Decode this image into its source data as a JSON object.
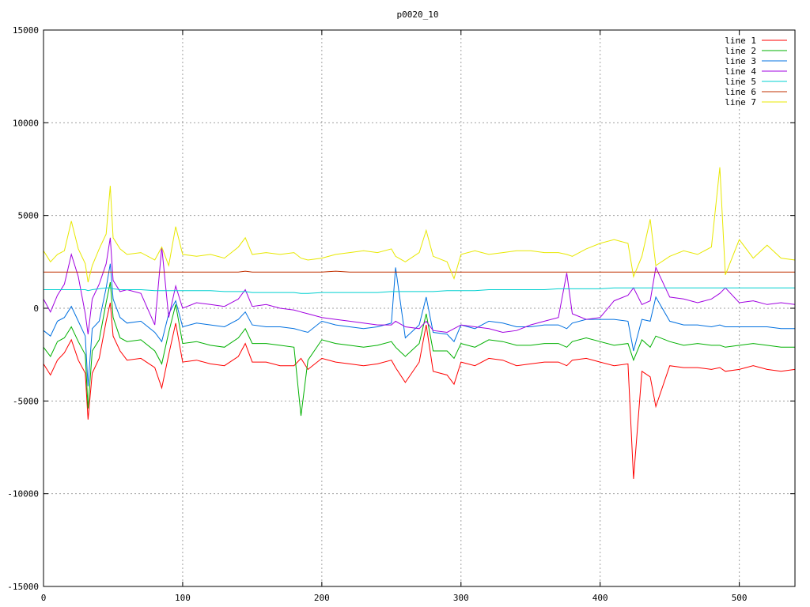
{
  "chart_data": {
    "type": "line",
    "title": "p0020_10",
    "xlabel": "",
    "ylabel": "",
    "xlim": [
      0,
      540
    ],
    "ylim": [
      -15000,
      15000
    ],
    "xticks": [
      0,
      100,
      200,
      300,
      400,
      500
    ],
    "yticks": [
      -15000,
      -10000,
      -5000,
      0,
      5000,
      10000,
      15000
    ],
    "grid": true,
    "legend_position": "top-right",
    "x": [
      0,
      5,
      10,
      15,
      20,
      25,
      30,
      32,
      35,
      40,
      45,
      48,
      50,
      55,
      60,
      70,
      80,
      85,
      90,
      95,
      100,
      110,
      120,
      130,
      140,
      145,
      150,
      160,
      170,
      180,
      185,
      190,
      200,
      210,
      220,
      230,
      240,
      250,
      253,
      260,
      270,
      275,
      280,
      290,
      295,
      300,
      310,
      320,
      330,
      340,
      350,
      360,
      370,
      376,
      380,
      390,
      400,
      410,
      420,
      424,
      430,
      436,
      440,
      450,
      460,
      470,
      480,
      486,
      490,
      500,
      510,
      520,
      530,
      540
    ],
    "series": [
      {
        "name": "line 1",
        "color": "#ff0000",
        "values": [
          -3000,
          -3600,
          -2800,
          -2400,
          -1700,
          -2800,
          -3500,
          -6000,
          -3500,
          -2700,
          -700,
          300,
          -1500,
          -2300,
          -2800,
          -2700,
          -3200,
          -4300,
          -2500,
          -800,
          -2900,
          -2800,
          -3000,
          -3100,
          -2600,
          -1900,
          -2900,
          -2900,
          -3100,
          -3100,
          -2700,
          -3300,
          -2700,
          -2900,
          -3000,
          -3100,
          -3000,
          -2800,
          -3200,
          -4000,
          -2900,
          -900,
          -3400,
          -3600,
          -4100,
          -2900,
          -3100,
          -2700,
          -2800,
          -3100,
          -3000,
          -2900,
          -2900,
          -3100,
          -2800,
          -2700,
          -2900,
          -3100,
          -3000,
          -9200,
          -3400,
          -3700,
          -5300,
          -3100,
          -3200,
          -3200,
          -3300,
          -3200,
          -3400,
          -3300,
          -3100,
          -3300,
          -3400,
          -3300
        ]
      },
      {
        "name": "line 2",
        "color": "#00b000",
        "values": [
          -2100,
          -2600,
          -1800,
          -1600,
          -1000,
          -1800,
          -2500,
          -5400,
          -2300,
          -1700,
          300,
          1400,
          -500,
          -1600,
          -1800,
          -1700,
          -2300,
          -3000,
          -1300,
          200,
          -1900,
          -1800,
          -2000,
          -2100,
          -1600,
          -1100,
          -1900,
          -1900,
          -2000,
          -2100,
          -5800,
          -2800,
          -1700,
          -1900,
          -2000,
          -2100,
          -2000,
          -1800,
          -2100,
          -2600,
          -1900,
          -300,
          -2300,
          -2300,
          -2700,
          -1900,
          -2100,
          -1700,
          -1800,
          -2000,
          -2000,
          -1900,
          -1900,
          -2100,
          -1800,
          -1600,
          -1800,
          -2000,
          -1900,
          -2800,
          -1700,
          -2100,
          -1500,
          -1800,
          -2000,
          -1900,
          -2000,
          -2000,
          -2100,
          -2000,
          -1900,
          -2000,
          -2100,
          -2100
        ]
      },
      {
        "name": "line 3",
        "color": "#0070e0",
        "values": [
          -1200,
          -1500,
          -700,
          -500,
          100,
          -700,
          -1500,
          -4200,
          -1100,
          -700,
          1100,
          2400,
          500,
          -500,
          -800,
          -700,
          -1300,
          -1800,
          -300,
          400,
          -1000,
          -800,
          -900,
          -1000,
          -600,
          -200,
          -900,
          -1000,
          -1000,
          -1100,
          -1200,
          -1300,
          -700,
          -900,
          -1000,
          -1100,
          -1000,
          -800,
          2200,
          -1600,
          -900,
          600,
          -1300,
          -1400,
          -1800,
          -900,
          -1100,
          -700,
          -800,
          -1000,
          -1000,
          -900,
          -900,
          -1100,
          -800,
          -600,
          -600,
          -600,
          -700,
          -2300,
          -600,
          -700,
          600,
          -700,
          -900,
          -900,
          -1000,
          -900,
          -1000,
          -1000,
          -1000,
          -1000,
          -1100,
          -1100
        ]
      },
      {
        "name": "line 4",
        "color": "#a000e0",
        "values": [
          500,
          -200,
          700,
          1300,
          2900,
          1700,
          -300,
          -1400,
          500,
          1300,
          2400,
          3800,
          1500,
          900,
          1000,
          800,
          -900,
          3300,
          -500,
          1200,
          0,
          300,
          200,
          100,
          500,
          1000,
          100,
          200,
          0,
          -100,
          -200,
          -300,
          -500,
          -600,
          -700,
          -800,
          -900,
          -900,
          -700,
          -1000,
          -1100,
          -700,
          -1200,
          -1300,
          -1100,
          -900,
          -1000,
          -1100,
          -1300,
          -1200,
          -900,
          -700,
          -500,
          1900,
          -300,
          -600,
          -500,
          400,
          700,
          1100,
          200,
          400,
          2200,
          600,
          500,
          300,
          500,
          800,
          1100,
          300,
          400,
          200,
          300,
          200
        ]
      },
      {
        "name": "line 5",
        "color": "#00d0d0",
        "values": [
          1000,
          1000,
          1000,
          1000,
          1000,
          1000,
          1000,
          950,
          1000,
          1050,
          1100,
          1100,
          1050,
          1000,
          1000,
          1000,
          950,
          950,
          950,
          950,
          950,
          950,
          950,
          900,
          900,
          900,
          850,
          850,
          850,
          850,
          800,
          800,
          850,
          850,
          850,
          850,
          850,
          900,
          900,
          900,
          900,
          900,
          900,
          950,
          950,
          950,
          950,
          1000,
          1000,
          1000,
          1000,
          1000,
          1050,
          1050,
          1050,
          1050,
          1050,
          1100,
          1100,
          1100,
          1100,
          1100,
          1100,
          1100,
          1100,
          1100,
          1100,
          1100,
          1100,
          1100,
          1100,
          1100,
          1100,
          1100
        ]
      },
      {
        "name": "line 6",
        "color": "#c03000",
        "values": [
          1950,
          1950,
          1950,
          1950,
          1950,
          1950,
          1950,
          1950,
          1950,
          1950,
          1950,
          1950,
          1950,
          1950,
          1950,
          1950,
          1950,
          1950,
          1950,
          1950,
          1950,
          1950,
          1950,
          1950,
          1950,
          2000,
          1950,
          1950,
          1950,
          1950,
          1950,
          1950,
          1950,
          2000,
          1950,
          1950,
          1950,
          1950,
          1950,
          1950,
          1950,
          1950,
          1950,
          1950,
          1950,
          1950,
          1950,
          1950,
          1950,
          1950,
          1950,
          1950,
          1950,
          1950,
          1950,
          1950,
          1950,
          1950,
          1950,
          1950,
          1950,
          1950,
          1950,
          1950,
          1950,
          1950,
          1950,
          1950,
          1950,
          1950,
          1950,
          1950,
          1950,
          1950
        ]
      },
      {
        "name": "line 7",
        "color": "#e8e800",
        "values": [
          3100,
          2500,
          2900,
          3100,
          4700,
          3200,
          2400,
          1400,
          2300,
          3200,
          4000,
          6600,
          3800,
          3200,
          2900,
          3000,
          2600,
          3300,
          2300,
          4400,
          2900,
          2800,
          2900,
          2700,
          3300,
          3800,
          2900,
          3000,
          2900,
          3000,
          2700,
          2600,
          2700,
          2900,
          3000,
          3100,
          3000,
          3200,
          2800,
          2500,
          3000,
          4200,
          2800,
          2500,
          1600,
          2900,
          3100,
          2900,
          3000,
          3100,
          3100,
          3000,
          3000,
          2900,
          2800,
          3200,
          3500,
          3700,
          3500,
          1700,
          2800,
          4800,
          2300,
          2800,
          3100,
          2900,
          3300,
          7600,
          1800,
          3700,
          2700,
          3400,
          2700,
          2600
        ]
      }
    ]
  }
}
